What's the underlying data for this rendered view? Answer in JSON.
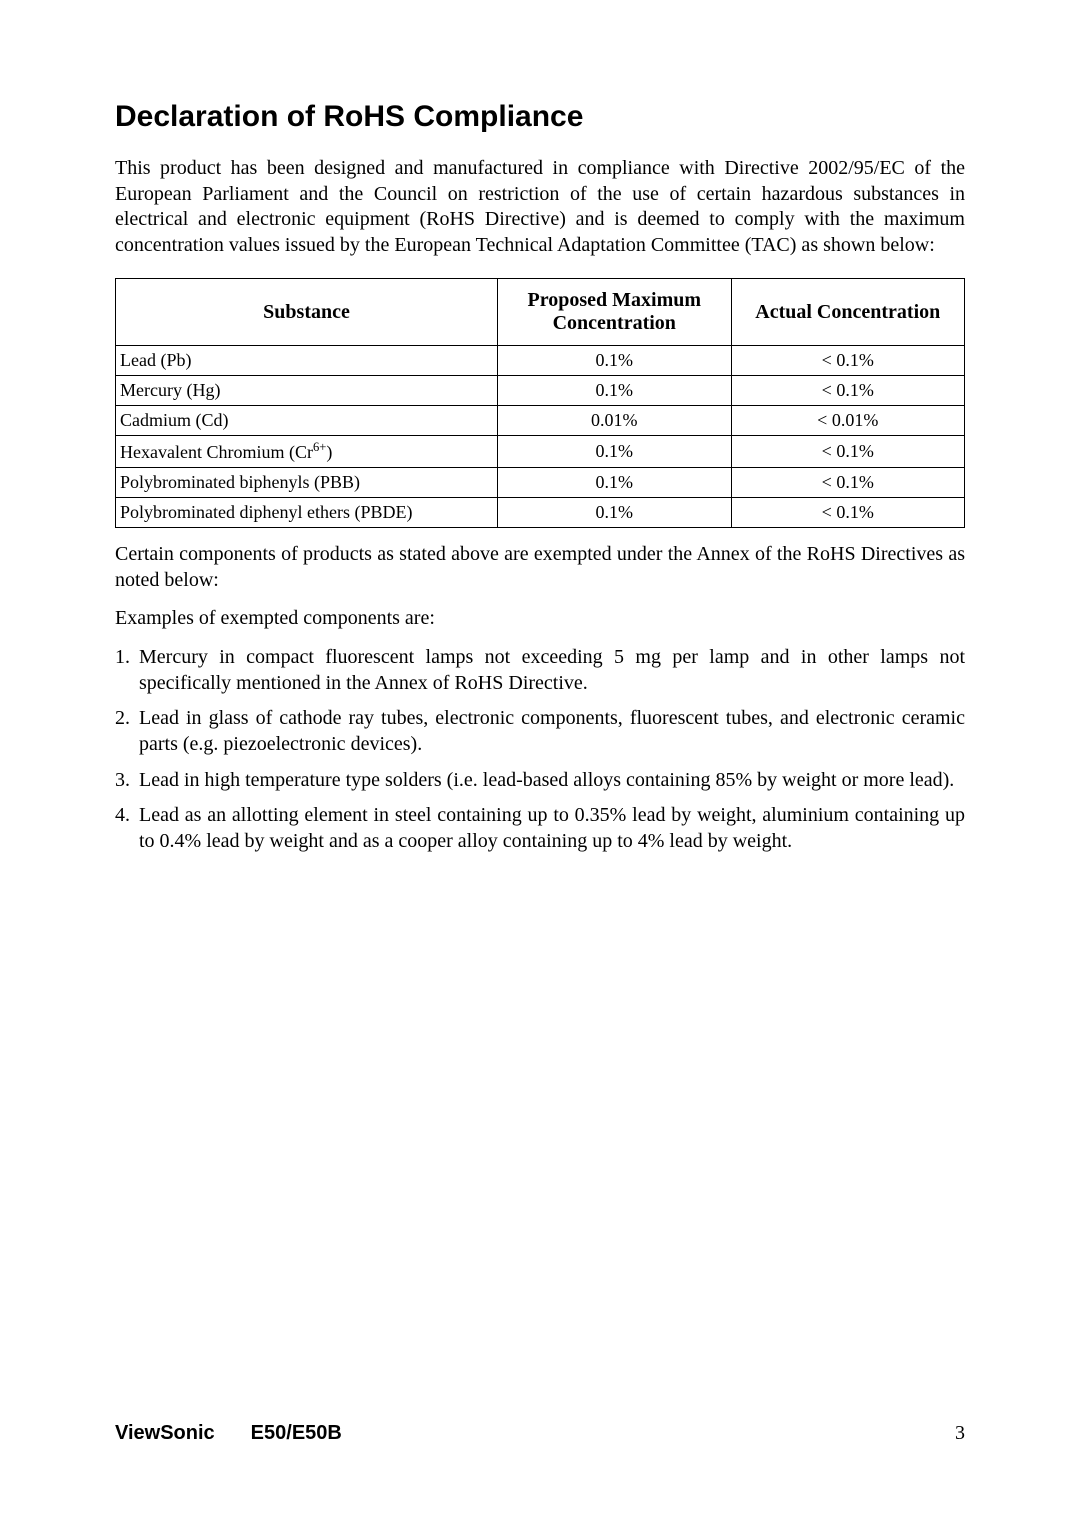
{
  "title": "Declaration of RoHS Compliance",
  "intro": "This product has been designed and manufactured in compliance with Directive 2002/95/EC of the European Parliament and the Council on restriction of the use of certain hazardous substances in electrical and electronic equipment (RoHS Directive) and is deemed to comply with the maximum concentration values issued by the European Technical Adaptation Committee (TAC) as shown below:",
  "table": {
    "headers": {
      "substance": "Substance",
      "proposed": "Proposed Maximum Concentration",
      "actual": "Actual Concentration"
    },
    "rows": [
      {
        "substance": "Lead (Pb)",
        "proposed": "0.1%",
        "actual": "< 0.1%"
      },
      {
        "substance": "Mercury (Hg)",
        "proposed": "0.1%",
        "actual": "< 0.1%"
      },
      {
        "substance": "Cadmium (Cd)",
        "proposed": "0.01%",
        "actual": "< 0.01%"
      },
      {
        "substance_html": "Hexavalent Chromium (Cr<sup>6+</sup>)",
        "proposed": "0.1%",
        "actual": "< 0.1%"
      },
      {
        "substance": "Polybrominated biphenyls (PBB)",
        "proposed": "0.1%",
        "actual": "< 0.1%"
      },
      {
        "substance": "Polybrominated diphenyl ethers (PBDE)",
        "proposed": "0.1%",
        "actual": "< 0.1%"
      }
    ]
  },
  "exempt_intro": "Certain components of products as stated above are exempted under the Annex of the RoHS Directives as noted below:",
  "exempt_lead": "Examples of exempted components are:",
  "exemptions": [
    "Mercury in compact fluorescent lamps not exceeding 5 mg per lamp and in other lamps not specifically mentioned in the Annex of RoHS Directive.",
    "Lead in glass of cathode ray tubes, electronic components, fluorescent tubes, and electronic ceramic parts (e.g. piezoelectronic devices).",
    "Lead in high temperature type solders (i.e. lead-based alloys containing 85% by weight or more lead).",
    "Lead as an allotting element in steel containing up to 0.35% lead by weight, aluminium containing up to 0.4% lead by weight and as a cooper alloy containing up to 4% lead by weight."
  ],
  "footer": {
    "brand": "ViewSonic",
    "model": "E50/E50B",
    "page": "3"
  }
}
